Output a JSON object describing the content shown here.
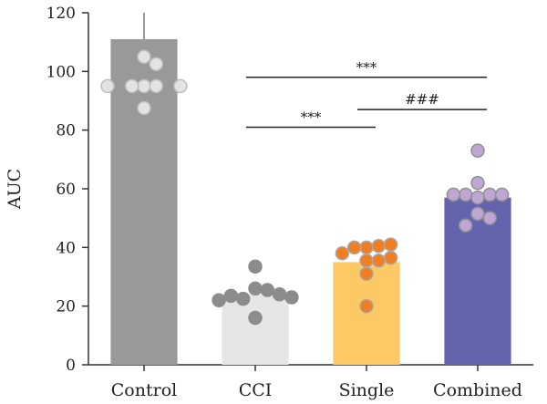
{
  "chart_data": {
    "type": "bar",
    "title": "",
    "xlabel": "",
    "ylabel": "AUC",
    "ylim": [
      0,
      120
    ],
    "yticks": [
      "0",
      "20",
      "40",
      "60",
      "80",
      "100",
      "120"
    ],
    "grid": false,
    "categories": [
      "Control",
      "CCI",
      "Single",
      "Combined"
    ],
    "values": [
      111,
      24,
      35,
      57
    ],
    "error_upper": [
      120,
      null,
      null,
      null
    ],
    "colors": {
      "bars": [
        "#999999",
        "#e6e6e6",
        "#fdc965",
        "#6364ad"
      ],
      "points": [
        "#e3e3e3",
        "#8c8c8c",
        "#ef7f22",
        "#c0a6d4"
      ],
      "point_stroke": [
        "#bdbdbd",
        "#8c8c8c",
        "#a8a8a8",
        "#8f8f8f"
      ]
    },
    "points": [
      [
        105,
        102.5,
        95,
        95,
        95,
        95,
        95,
        87.5
      ],
      [
        33.5,
        26,
        25.5,
        22.5,
        24,
        23.5,
        23,
        22,
        16
      ],
      [
        40,
        40.5,
        40,
        41,
        38,
        36.5,
        35.5,
        35.5,
        31,
        20
      ],
      [
        73,
        62,
        58,
        58,
        58,
        58,
        57,
        51.5,
        50,
        47.5
      ]
    ],
    "annotations": [
      {
        "from": "CCI",
        "to": "Combined",
        "y": 98,
        "label": "***"
      },
      {
        "from": "Single",
        "to": "Combined",
        "y": 87,
        "label": "###"
      },
      {
        "from": "CCI",
        "to": "Single",
        "y": 81,
        "label": "***"
      }
    ]
  }
}
